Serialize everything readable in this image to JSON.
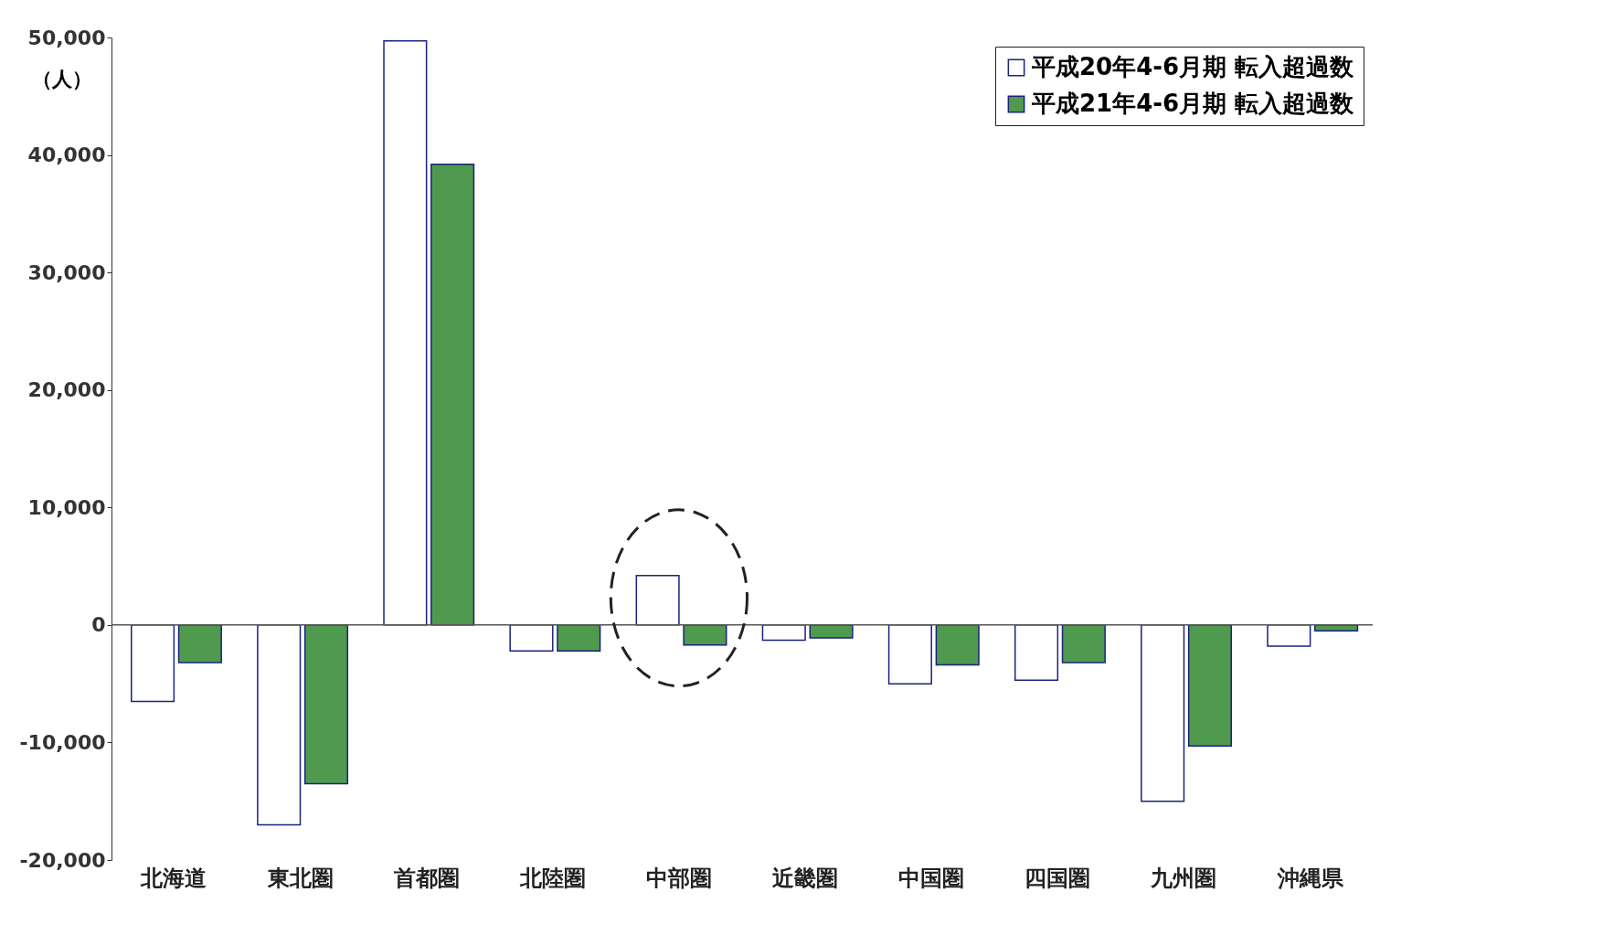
{
  "chart_data": {
    "type": "bar",
    "ylabel": "（人）",
    "categories": [
      "北海道",
      "東北圏",
      "首都圏",
      "北陸圏",
      "中部圏",
      "近畿圏",
      "中国圏",
      "四国圏",
      "九州圏",
      "沖縄県"
    ],
    "series": [
      {
        "name": "平成20年4-6月期 転入超過数",
        "color": "#ffffff",
        "values": [
          -6500,
          -17000,
          49700,
          -2200,
          4200,
          -1300,
          -5000,
          -4700,
          -15000,
          -1800
        ]
      },
      {
        "name": "平成21年4-6月期 転入超過数",
        "color": "#4f9a4f",
        "values": [
          -3200,
          -13500,
          39200,
          -2200,
          -1700,
          -1100,
          -3400,
          -3200,
          -10300,
          -500
        ]
      }
    ],
    "ylim": [
      -20000,
      50000
    ],
    "yticks": [
      {
        "value": -20000,
        "label": "-20,000"
      },
      {
        "value": -10000,
        "label": "-10,000"
      },
      0,
      {
        "value": 10000,
        "label": "10,000"
      },
      {
        "value": 20000,
        "label": "20,000"
      },
      {
        "value": 30000,
        "label": "30,000"
      },
      {
        "value": 40000,
        "label": "40,000"
      },
      {
        "value": 50000,
        "label": "50,000"
      }
    ],
    "legend": "top right"
  }
}
